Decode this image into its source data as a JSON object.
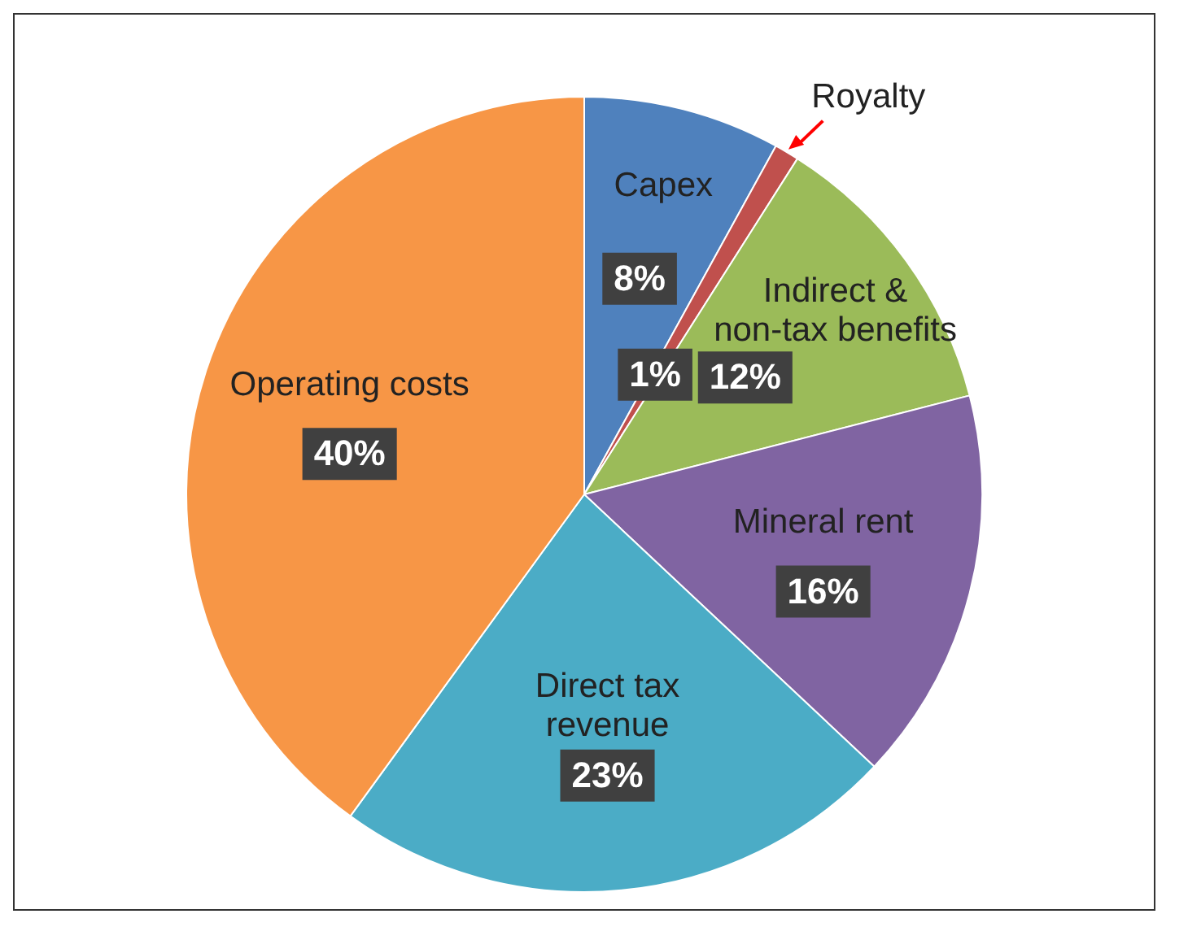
{
  "chart_data": {
    "type": "pie",
    "categories": [
      "Capex",
      "Royalty",
      "Indirect & non-tax benefits",
      "Mineral rent",
      "Direct tax revenue",
      "Operating costs"
    ],
    "values": [
      8,
      1,
      12,
      16,
      23,
      40
    ],
    "value_labels": [
      "8%",
      "1%",
      "12%",
      "16%",
      "23%",
      "40%"
    ],
    "colors": [
      "#4f81bd",
      "#c0504d",
      "#9bbb59",
      "#8064a2",
      "#4bacc6",
      "#f79646"
    ]
  }
}
